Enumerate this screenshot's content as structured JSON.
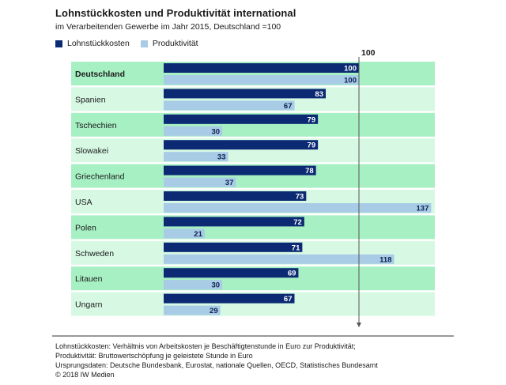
{
  "header": {
    "title": "Lohnstückkosten und Produktivität international",
    "subtitle": "im Verarbeitenden Gewerbe im Jahr 2015, Deutschland =100"
  },
  "legend": {
    "items": [
      {
        "label": "Lohnstückkosten",
        "color": "#0b2a73"
      },
      {
        "label": "Produktivität",
        "color": "#a8cbe6"
      }
    ]
  },
  "chart_data": {
    "type": "bar",
    "orientation": "horizontal",
    "reference_value": 100,
    "reference_label": "100",
    "categories": [
      "Deutschland",
      "Spanien",
      "Tschechien",
      "Slowakei",
      "Griechenland",
      "USA",
      "Polen",
      "Schweden",
      "Litauen",
      "Ungarn"
    ],
    "series": [
      {
        "name": "Lohnstückkosten",
        "color": "#0b2a73",
        "values": [
          100,
          83,
          79,
          79,
          78,
          73,
          72,
          71,
          69,
          67
        ]
      },
      {
        "name": "Produktivität",
        "color": "#a8cbe6",
        "values": [
          100,
          67,
          30,
          33,
          37,
          137,
          21,
          118,
          30,
          29
        ]
      }
    ],
    "highlight_category": "Deutschland",
    "row_colors": [
      "#a7f0c4",
      "#d7f9e4"
    ]
  },
  "footer": {
    "lines": [
      "Lohnstückkosten: Verhältnis von Arbeitskosten je Beschäftigtenstunde in Euro zur Produktivität;",
      "Produktivität: Bruttowertschöpfung je geleistete Stunde in Euro",
      "Ursprungsdaten: Deutsche Bundesbank, Eurostat, nationale Quellen, OECD, Statistisches Bundesamt",
      "© 2018 IW Medien"
    ]
  }
}
